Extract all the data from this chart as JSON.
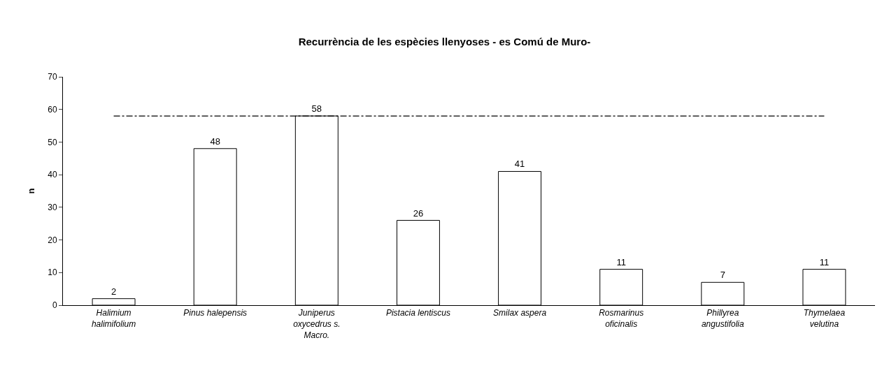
{
  "chart_data": {
    "type": "bar",
    "title": "Recurrència de les espècies llenyoses - es Comú de Muro-",
    "ylabel": "n",
    "categories": [
      "Halimium\nhalimifolium",
      "Pinus halepensis",
      "Juniperus\noxycedrus s.\nMacro.",
      "Pistacia lentiscus",
      "Smilax aspera",
      "Rosmarinus\noficinalis",
      "Phillyrea\nangustifolia",
      "Thymelaea\nvelutina"
    ],
    "series": [
      {
        "color": "#ffffff",
        "values": [
          2,
          48,
          58,
          26,
          41,
          11,
          7,
          11
        ],
        "value_labels": [
          "2",
          "48",
          "58",
          "26",
          "41",
          "11",
          "7",
          "11"
        ]
      },
      {
        "type": "line",
        "color": "#000000",
        "line_style": "dashed",
        "values": [
          58,
          58,
          58,
          58,
          58,
          58,
          58,
          58
        ]
      }
    ],
    "ylim": [
      0,
      70
    ],
    "yticks": [
      0,
      10,
      20,
      30,
      40,
      50,
      60,
      70
    ]
  }
}
